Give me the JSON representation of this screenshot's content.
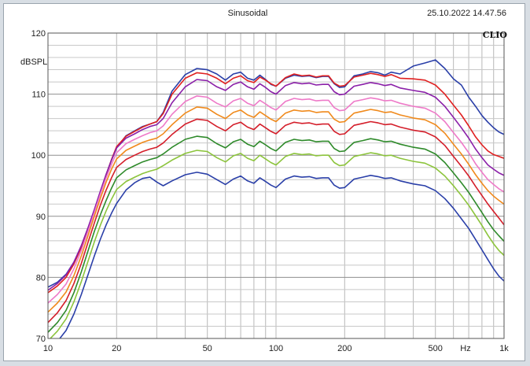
{
  "chart_data": {
    "type": "line",
    "title": "Sinusoidal",
    "timestamp": "25.10.2022 14.47.56",
    "brand": "CLIO",
    "ylabel": "dBSPL",
    "xunit": "Hz",
    "xscale": "log",
    "xlim": [
      10,
      1000
    ],
    "ylim": [
      70,
      120
    ],
    "grid": true,
    "x_ticks": [
      {
        "value": 10,
        "label": "10"
      },
      {
        "value": 20,
        "label": "20"
      },
      {
        "value": 50,
        "label": "50"
      },
      {
        "value": 100,
        "label": "100"
      },
      {
        "value": 200,
        "label": "200"
      },
      {
        "value": 500,
        "label": "500"
      },
      {
        "value": 1000,
        "label": "1k"
      }
    ],
    "y_ticks": [
      {
        "value": 120,
        "label": "120"
      },
      {
        "value": 110,
        "label": "110"
      },
      {
        "value": 100,
        "label": "100"
      },
      {
        "value": 90,
        "label": "90"
      },
      {
        "value": 80,
        "label": "80"
      },
      {
        "value": 70,
        "label": "70"
      }
    ],
    "x": [
      10,
      11,
      12,
      13,
      14,
      15,
      16,
      17,
      18,
      19,
      20,
      22,
      24,
      26,
      28,
      30,
      32,
      35,
      40,
      45,
      50,
      55,
      60,
      65,
      70,
      75,
      80,
      85,
      90,
      95,
      100,
      110,
      120,
      130,
      140,
      150,
      160,
      170,
      180,
      190,
      200,
      220,
      240,
      260,
      280,
      300,
      320,
      350,
      400,
      450,
      500,
      550,
      600,
      650,
      700,
      750,
      800,
      850,
      900,
      950,
      1000
    ],
    "series": [
      {
        "color": "#2a3fa8",
        "values": [
          78.4,
          79.2,
          80.5,
          82.5,
          85.0,
          88.0,
          91.0,
          94.0,
          96.8,
          99.2,
          101.2,
          103.2,
          104.0,
          104.7,
          105.1,
          105.5,
          107.0,
          110.5,
          113.2,
          114.2,
          114.0,
          113.3,
          112.3,
          113.3,
          113.6,
          112.6,
          112.3,
          113.1,
          112.4,
          111.6,
          111.3,
          112.6,
          113.1,
          112.9,
          113.0,
          112.7,
          112.9,
          112.9,
          111.7,
          111.1,
          111.2,
          113.0,
          113.3,
          113.7,
          113.5,
          113.1,
          113.6,
          113.3,
          114.6,
          115.1,
          115.6,
          114.2,
          112.5,
          111.5,
          109.5,
          108.0,
          106.5,
          105.4,
          104.5,
          103.8,
          103.4
        ]
      },
      {
        "color": "#e02020",
        "values": [
          77.5,
          78.6,
          80.0,
          82.2,
          84.9,
          88.0,
          91.0,
          94.0,
          96.8,
          99.3,
          101.4,
          103.1,
          103.9,
          104.6,
          105.1,
          105.5,
          106.8,
          110.0,
          112.6,
          113.5,
          113.3,
          112.6,
          111.7,
          112.6,
          113.0,
          112.2,
          111.9,
          112.8,
          112.3,
          111.7,
          111.3,
          112.7,
          113.3,
          113.0,
          113.1,
          112.8,
          113.0,
          113.0,
          111.8,
          111.3,
          111.4,
          112.8,
          113.1,
          113.4,
          113.2,
          112.9,
          113.2,
          112.6,
          112.5,
          112.3,
          111.5,
          110.0,
          108.2,
          106.6,
          104.8,
          103.0,
          101.7,
          100.7,
          100.1,
          99.8,
          99.5
        ]
      },
      {
        "color": "#8a1fa8",
        "values": [
          77.9,
          79.0,
          80.4,
          82.5,
          85.2,
          88.2,
          91.2,
          94.2,
          96.9,
          99.2,
          101.2,
          102.8,
          103.5,
          104.2,
          104.7,
          105.0,
          106.0,
          108.6,
          111.2,
          112.4,
          112.2,
          111.2,
          110.6,
          111.6,
          112.0,
          111.2,
          110.8,
          111.7,
          111.1,
          110.4,
          110.0,
          111.4,
          111.9,
          111.7,
          111.8,
          111.5,
          111.6,
          111.6,
          110.4,
          109.9,
          110.0,
          111.3,
          111.6,
          111.9,
          111.7,
          111.4,
          111.6,
          111.0,
          110.6,
          110.3,
          109.5,
          108.0,
          106.2,
          104.5,
          102.8,
          101.0,
          99.6,
          98.4,
          97.7,
          97.1,
          96.7
        ]
      },
      {
        "color": "#ee7ac8",
        "values": [
          75.8,
          77.2,
          78.9,
          81.4,
          84.4,
          87.6,
          90.7,
          93.7,
          96.3,
          98.5,
          100.4,
          101.9,
          102.6,
          103.2,
          103.7,
          104.0,
          104.8,
          106.7,
          108.8,
          109.7,
          109.5,
          108.5,
          107.9,
          108.9,
          109.3,
          108.5,
          108.1,
          109.0,
          108.4,
          107.8,
          107.4,
          108.8,
          109.3,
          109.1,
          109.2,
          108.9,
          109.0,
          109.0,
          107.8,
          107.3,
          107.4,
          108.8,
          109.1,
          109.4,
          109.2,
          108.9,
          109.0,
          108.5,
          108.0,
          107.7,
          106.9,
          105.5,
          103.7,
          102.1,
          100.4,
          98.6,
          97.2,
          96.0,
          95.2,
          94.5,
          94.0
        ]
      },
      {
        "color": "#f08a1c",
        "values": [
          74.3,
          75.8,
          77.6,
          80.3,
          83.5,
          86.9,
          90.1,
          93.0,
          95.6,
          97.7,
          99.4,
          100.8,
          101.5,
          102.1,
          102.5,
          102.8,
          103.5,
          105.0,
          106.9,
          107.9,
          107.7,
          106.7,
          106.0,
          107.0,
          107.4,
          106.6,
          106.2,
          107.1,
          106.5,
          105.9,
          105.5,
          106.9,
          107.4,
          107.2,
          107.3,
          107.0,
          107.1,
          107.1,
          105.9,
          105.4,
          105.5,
          106.9,
          107.2,
          107.5,
          107.3,
          107.0,
          107.1,
          106.6,
          106.1,
          105.8,
          105.0,
          103.6,
          101.8,
          100.2,
          98.5,
          96.8,
          95.4,
          94.2,
          93.3,
          92.6,
          92.0
        ]
      },
      {
        "color": "#d41e2a",
        "values": [
          72.6,
          74.2,
          76.2,
          79.0,
          82.3,
          85.8,
          89.0,
          91.9,
          94.3,
          96.3,
          98.0,
          99.3,
          100.0,
          100.6,
          101.0,
          101.3,
          102.0,
          103.4,
          105.1,
          105.9,
          105.7,
          104.7,
          104.0,
          105.0,
          105.4,
          104.6,
          104.2,
          105.1,
          104.5,
          103.9,
          103.5,
          104.9,
          105.4,
          105.2,
          105.3,
          105.0,
          105.1,
          105.1,
          103.9,
          103.4,
          103.5,
          104.9,
          105.2,
          105.5,
          105.3,
          105.0,
          105.1,
          104.6,
          104.1,
          103.8,
          103.0,
          101.6,
          99.8,
          98.2,
          96.6,
          94.9,
          93.4,
          92.0,
          90.8,
          89.7,
          88.6
        ]
      },
      {
        "color": "#2e8a2a",
        "values": [
          71.0,
          72.6,
          74.6,
          77.5,
          80.9,
          84.4,
          87.6,
          90.3,
          92.6,
          94.6,
          96.3,
          97.6,
          98.3,
          98.9,
          99.3,
          99.6,
          100.2,
          101.3,
          102.6,
          103.1,
          102.9,
          101.9,
          101.2,
          102.2,
          102.6,
          101.8,
          101.4,
          102.3,
          101.7,
          101.1,
          100.7,
          102.1,
          102.6,
          102.4,
          102.5,
          102.2,
          102.3,
          102.3,
          101.1,
          100.6,
          100.7,
          102.1,
          102.4,
          102.7,
          102.5,
          102.2,
          102.3,
          101.8,
          101.3,
          101.0,
          100.2,
          98.8,
          97.1,
          95.5,
          93.9,
          92.2,
          90.6,
          89.1,
          87.8,
          86.8,
          85.9
        ]
      },
      {
        "color": "#8cc43c",
        "values": [
          69.6,
          71.2,
          73.2,
          76.0,
          79.3,
          82.7,
          85.9,
          88.6,
          90.9,
          92.8,
          94.4,
          95.7,
          96.4,
          97.0,
          97.4,
          97.7,
          98.3,
          99.2,
          100.3,
          100.8,
          100.6,
          99.6,
          98.9,
          99.9,
          100.3,
          99.5,
          99.1,
          100.0,
          99.4,
          98.8,
          98.4,
          99.8,
          100.3,
          100.1,
          100.2,
          99.9,
          100.0,
          100.0,
          98.8,
          98.3,
          98.4,
          99.8,
          100.1,
          100.4,
          100.2,
          99.9,
          100.0,
          99.5,
          99.0,
          98.7,
          97.9,
          96.6,
          95.0,
          93.4,
          91.8,
          90.1,
          88.5,
          86.9,
          85.5,
          84.4,
          83.6
        ]
      },
      {
        "color": "#2a3fa8",
        "values": [
          68.2,
          69.5,
          71.3,
          74.0,
          77.2,
          80.5,
          83.6,
          86.3,
          88.6,
          90.5,
          92.1,
          94.3,
          95.5,
          96.2,
          96.4,
          95.6,
          95.0,
          95.8,
          96.8,
          97.2,
          96.9,
          96.0,
          95.2,
          96.1,
          96.6,
          95.8,
          95.4,
          96.3,
          95.7,
          95.1,
          94.7,
          96.1,
          96.6,
          96.4,
          96.5,
          96.2,
          96.3,
          96.3,
          95.1,
          94.6,
          94.7,
          96.1,
          96.4,
          96.7,
          96.5,
          96.2,
          96.3,
          95.8,
          95.3,
          95.0,
          94.2,
          92.9,
          91.3,
          89.6,
          88.0,
          86.2,
          84.5,
          82.9,
          81.4,
          80.2,
          79.4
        ]
      }
    ]
  }
}
